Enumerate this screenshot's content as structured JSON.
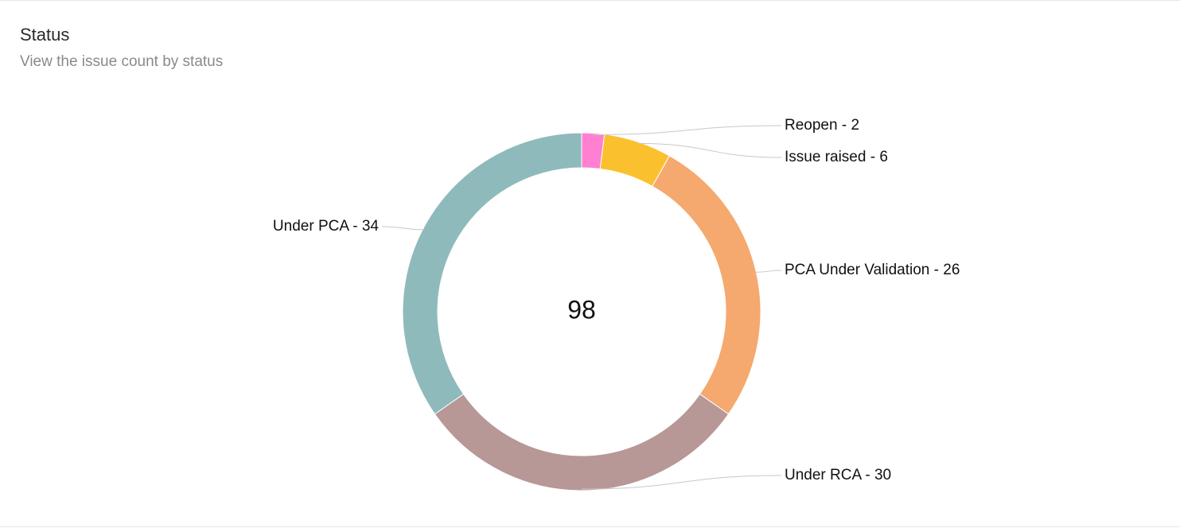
{
  "widget": {
    "title": "Status",
    "subtitle": "View the issue count by status"
  },
  "chart_data": {
    "type": "pie",
    "variant": "donut",
    "center_label": "98",
    "total": 98,
    "start_angle_deg": 0,
    "direction": "clockwise",
    "label_format": "{label} - {value}",
    "slices": [
      {
        "label": "Reopen",
        "value": 2,
        "color": "#ff7fd0"
      },
      {
        "label": "Issue raised",
        "value": 6,
        "color": "#fbc02d"
      },
      {
        "label": "PCA Under Validation",
        "value": 26,
        "color": "#f5a96e"
      },
      {
        "label": "Under RCA",
        "value": 30,
        "color": "#b89797"
      },
      {
        "label": "Under PCA",
        "value": 34,
        "color": "#8fbabb"
      }
    ],
    "leader_line_color": "#c8c8c8"
  }
}
